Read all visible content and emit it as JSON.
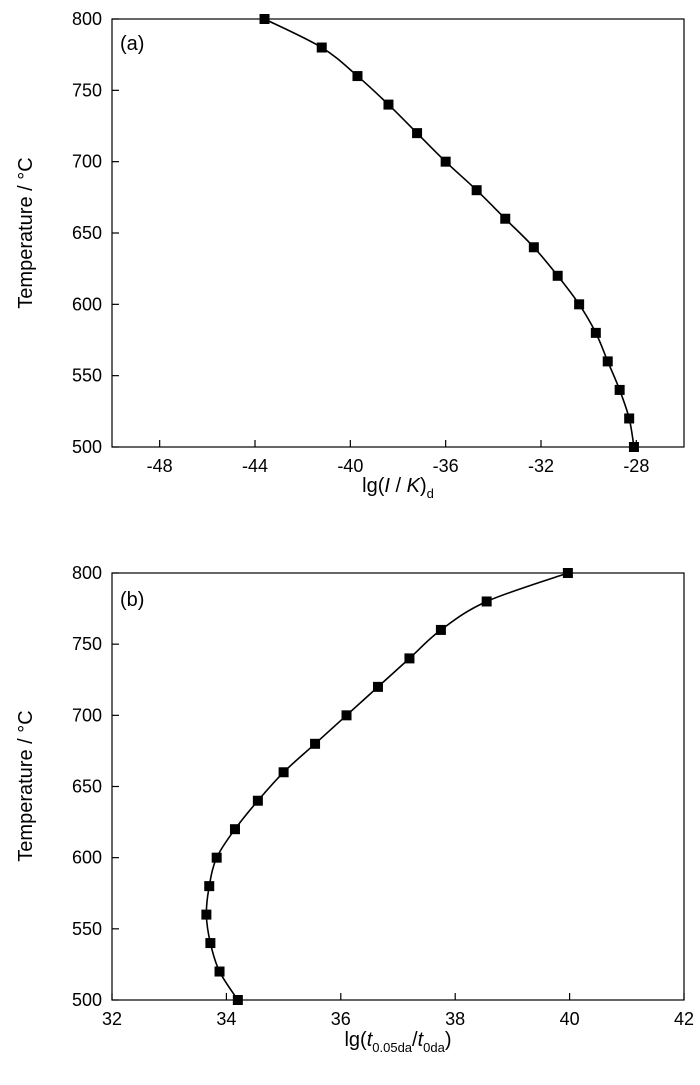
{
  "chart_data": [
    {
      "type": "line",
      "panel_label": "(a)",
      "xlabel": {
        "main": "lg(",
        "italic1": "I",
        "sep": " / ",
        "italic2": "K",
        "close": ")",
        "sub": "d"
      },
      "ylabel": "Temperature / °C",
      "xlim": [
        -50,
        -26
      ],
      "ylim": [
        500,
        800
      ],
      "xticks": [
        -48,
        -44,
        -40,
        -36,
        -32,
        -28
      ],
      "xtick_labels": [
        "-48",
        "-44",
        "-40",
        "-36",
        "-32",
        "-28"
      ],
      "yticks": [
        500,
        550,
        600,
        650,
        700,
        750,
        800
      ],
      "ytick_labels": [
        "500",
        "550",
        "600",
        "650",
        "700",
        "750",
        "800"
      ],
      "marker": "square",
      "line": "smooth",
      "series": [
        {
          "points": [
            {
              "x": -28.1,
              "y": 500
            },
            {
              "x": -28.3,
              "y": 520
            },
            {
              "x": -28.7,
              "y": 540
            },
            {
              "x": -29.2,
              "y": 560
            },
            {
              "x": -29.7,
              "y": 580
            },
            {
              "x": -30.4,
              "y": 600
            },
            {
              "x": -31.3,
              "y": 620
            },
            {
              "x": -32.3,
              "y": 640
            },
            {
              "x": -33.5,
              "y": 660
            },
            {
              "x": -34.7,
              "y": 680
            },
            {
              "x": -36.0,
              "y": 700
            },
            {
              "x": -37.2,
              "y": 720
            },
            {
              "x": -38.4,
              "y": 740
            },
            {
              "x": -39.7,
              "y": 760
            },
            {
              "x": -41.2,
              "y": 780
            },
            {
              "x": -43.6,
              "y": 800
            }
          ]
        }
      ]
    },
    {
      "type": "line",
      "panel_label": "(b)",
      "xlabel": {
        "main": "lg(",
        "italic1": "t",
        "sub1": "0.05da",
        "sep": "/",
        "italic2": "t",
        "sub2": "0da",
        "close": ")"
      },
      "ylabel": "Temperature / °C",
      "xlim": [
        32,
        42
      ],
      "ylim": [
        500,
        800
      ],
      "xticks": [
        32,
        34,
        36,
        38,
        40,
        42
      ],
      "xtick_labels": [
        "32",
        "34",
        "36",
        "38",
        "40",
        "42"
      ],
      "yticks": [
        500,
        550,
        600,
        650,
        700,
        750,
        800
      ],
      "ytick_labels": [
        "500",
        "550",
        "600",
        "650",
        "700",
        "750",
        "800"
      ],
      "marker": "square",
      "line": "smooth",
      "series": [
        {
          "points": [
            {
              "x": 34.2,
              "y": 500
            },
            {
              "x": 33.88,
              "y": 520
            },
            {
              "x": 33.72,
              "y": 540
            },
            {
              "x": 33.65,
              "y": 560
            },
            {
              "x": 33.7,
              "y": 580
            },
            {
              "x": 33.83,
              "y": 600
            },
            {
              "x": 34.15,
              "y": 620
            },
            {
              "x": 34.55,
              "y": 640
            },
            {
              "x": 35.0,
              "y": 660
            },
            {
              "x": 35.55,
              "y": 680
            },
            {
              "x": 36.1,
              "y": 700
            },
            {
              "x": 36.65,
              "y": 720
            },
            {
              "x": 37.2,
              "y": 740
            },
            {
              "x": 37.75,
              "y": 760
            },
            {
              "x": 38.55,
              "y": 780
            },
            {
              "x": 39.97,
              "y": 800
            }
          ]
        }
      ]
    }
  ]
}
